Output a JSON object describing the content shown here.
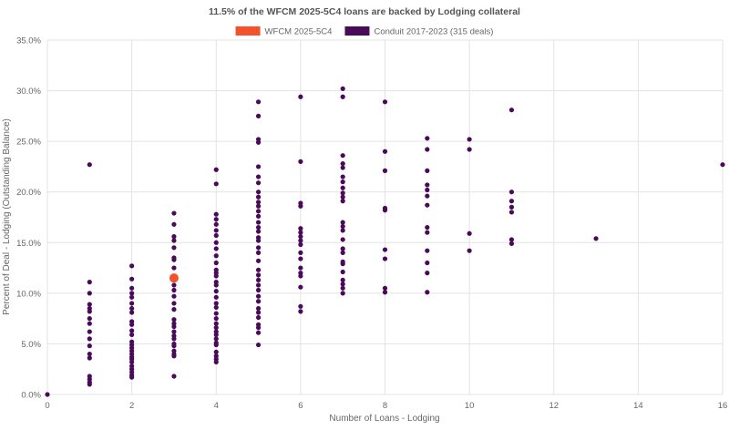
{
  "chart_data": {
    "type": "scatter",
    "title": "11.5% of the WFCM 2025-5C4 loans are backed by Lodging collateral",
    "xlabel": "Number of Loans - Lodging",
    "ylabel": "Percent of Deal - Lodging (Outstanding Balance)",
    "xlim": [
      0,
      16
    ],
    "ylim": [
      0,
      35
    ],
    "x_ticks": [
      {
        "value": 0,
        "label": "0"
      },
      {
        "value": 2,
        "label": "2"
      },
      {
        "value": 4,
        "label": "4"
      },
      {
        "value": 6,
        "label": "6"
      },
      {
        "value": 8,
        "label": "8"
      },
      {
        "value": 10,
        "label": "10"
      },
      {
        "value": 12,
        "label": "12"
      },
      {
        "value": 14,
        "label": "14"
      },
      {
        "value": 16,
        "label": "16"
      }
    ],
    "y_ticks": [
      {
        "value": 0,
        "label": "0.0%"
      },
      {
        "value": 5,
        "label": "5.0%"
      },
      {
        "value": 10,
        "label": "10.0%"
      },
      {
        "value": 15,
        "label": "15.0%"
      },
      {
        "value": 20,
        "label": "20.0%"
      },
      {
        "value": 25,
        "label": "25.0%"
      },
      {
        "value": 30,
        "label": "30.0%"
      },
      {
        "value": 35,
        "label": "35.0%"
      }
    ],
    "grid": true,
    "legend_position": "top-center",
    "series": [
      {
        "name": "WFCM 2025-5C4",
        "color": "#f4512c",
        "marker": "large-circle",
        "points": [
          [
            3,
            11.5
          ]
        ]
      },
      {
        "name": "Conduit 2017-2023 (315 deals)",
        "color": "#4a0a5a",
        "marker": "circle",
        "points": [
          [
            0,
            0.0
          ],
          [
            1,
            22.7
          ],
          [
            1,
            11.1
          ],
          [
            1,
            10.0
          ],
          [
            1,
            8.9
          ],
          [
            1,
            8.5
          ],
          [
            1,
            8.2
          ],
          [
            1,
            7.5
          ],
          [
            1,
            7.0
          ],
          [
            1,
            6.2
          ],
          [
            1,
            5.5
          ],
          [
            1,
            4.8
          ],
          [
            1,
            4.0
          ],
          [
            1,
            3.6
          ],
          [
            1,
            1.8
          ],
          [
            1,
            1.5
          ],
          [
            1,
            1.2
          ],
          [
            1,
            1.0
          ],
          [
            2,
            12.7
          ],
          [
            2,
            11.4
          ],
          [
            2,
            10.5
          ],
          [
            2,
            10.0
          ],
          [
            2,
            9.6
          ],
          [
            2,
            9.0
          ],
          [
            2,
            8.5
          ],
          [
            2,
            8.1
          ],
          [
            2,
            7.2
          ],
          [
            2,
            6.9
          ],
          [
            2,
            6.3
          ],
          [
            2,
            5.9
          ],
          [
            2,
            5.2
          ],
          [
            2,
            4.9
          ],
          [
            2,
            4.6
          ],
          [
            2,
            4.3
          ],
          [
            2,
            4.0
          ],
          [
            2,
            3.7
          ],
          [
            2,
            3.5
          ],
          [
            2,
            3.2
          ],
          [
            2,
            2.8
          ],
          [
            2,
            2.5
          ],
          [
            2,
            2.2
          ],
          [
            2,
            1.9
          ],
          [
            2,
            1.7
          ],
          [
            3,
            17.9
          ],
          [
            3,
            16.8
          ],
          [
            3,
            15.6
          ],
          [
            3,
            15.2
          ],
          [
            3,
            14.5
          ],
          [
            3,
            13.5
          ],
          [
            3,
            13.3
          ],
          [
            3,
            12.5
          ],
          [
            3,
            11.5
          ],
          [
            3,
            10.8
          ],
          [
            3,
            10.3
          ],
          [
            3,
            9.7
          ],
          [
            3,
            9.0
          ],
          [
            3,
            8.4
          ],
          [
            3,
            7.4
          ],
          [
            3,
            7.0
          ],
          [
            3,
            6.7
          ],
          [
            3,
            6.2
          ],
          [
            3,
            5.8
          ],
          [
            3,
            5.5
          ],
          [
            3,
            5.0
          ],
          [
            3,
            4.8
          ],
          [
            3,
            4.3
          ],
          [
            3,
            4.0
          ],
          [
            3,
            3.8
          ],
          [
            3,
            1.8
          ],
          [
            4,
            22.2
          ],
          [
            4,
            20.8
          ],
          [
            4,
            17.8
          ],
          [
            4,
            17.3
          ],
          [
            4,
            16.8
          ],
          [
            4,
            16.2
          ],
          [
            4,
            15.7
          ],
          [
            4,
            15.0
          ],
          [
            4,
            14.4
          ],
          [
            4,
            13.7
          ],
          [
            4,
            13.0
          ],
          [
            4,
            12.3
          ],
          [
            4,
            12.0
          ],
          [
            4,
            11.7
          ],
          [
            4,
            11.1
          ],
          [
            4,
            10.8
          ],
          [
            4,
            10.2
          ],
          [
            4,
            9.6
          ],
          [
            4,
            9.0
          ],
          [
            4,
            8.6
          ],
          [
            4,
            8.0
          ],
          [
            4,
            7.5
          ],
          [
            4,
            7.0
          ],
          [
            4,
            6.6
          ],
          [
            4,
            6.2
          ],
          [
            4,
            5.9
          ],
          [
            4,
            5.5
          ],
          [
            4,
            5.1
          ],
          [
            4,
            4.9
          ],
          [
            4,
            4.2
          ],
          [
            4,
            3.8
          ],
          [
            4,
            3.5
          ],
          [
            4,
            3.2
          ],
          [
            5,
            28.9
          ],
          [
            5,
            27.5
          ],
          [
            5,
            25.2
          ],
          [
            5,
            24.9
          ],
          [
            5,
            22.5
          ],
          [
            5,
            21.5
          ],
          [
            5,
            20.9
          ],
          [
            5,
            20.0
          ],
          [
            5,
            19.5
          ],
          [
            5,
            19.0
          ],
          [
            5,
            18.6
          ],
          [
            5,
            18.1
          ],
          [
            5,
            17.6
          ],
          [
            5,
            17.0
          ],
          [
            5,
            16.5
          ],
          [
            5,
            16.1
          ],
          [
            5,
            15.5
          ],
          [
            5,
            15.2
          ],
          [
            5,
            14.5
          ],
          [
            5,
            14.0
          ],
          [
            5,
            13.2
          ],
          [
            5,
            12.3
          ],
          [
            5,
            11.8
          ],
          [
            5,
            11.3
          ],
          [
            5,
            10.8
          ],
          [
            5,
            10.3
          ],
          [
            5,
            9.7
          ],
          [
            5,
            9.2
          ],
          [
            5,
            8.5
          ],
          [
            5,
            8.1
          ],
          [
            5,
            7.6
          ],
          [
            5,
            6.9
          ],
          [
            5,
            6.6
          ],
          [
            5,
            6.1
          ],
          [
            5,
            4.9
          ],
          [
            6,
            29.4
          ],
          [
            6,
            23.0
          ],
          [
            6,
            18.9
          ],
          [
            6,
            18.6
          ],
          [
            6,
            16.4
          ],
          [
            6,
            16.0
          ],
          [
            6,
            15.6
          ],
          [
            6,
            15.2
          ],
          [
            6,
            14.8
          ],
          [
            6,
            14.0
          ],
          [
            6,
            13.4
          ],
          [
            6,
            12.5
          ],
          [
            6,
            12.0
          ],
          [
            6,
            11.7
          ],
          [
            6,
            10.6
          ],
          [
            6,
            8.7
          ],
          [
            6,
            8.2
          ],
          [
            7,
            30.2
          ],
          [
            7,
            29.4
          ],
          [
            7,
            23.6
          ],
          [
            7,
            22.8
          ],
          [
            7,
            22.4
          ],
          [
            7,
            21.5
          ],
          [
            7,
            21.0
          ],
          [
            7,
            20.4
          ],
          [
            7,
            19.9
          ],
          [
            7,
            19.5
          ],
          [
            7,
            19.1
          ],
          [
            7,
            17.0
          ],
          [
            7,
            16.6
          ],
          [
            7,
            16.2
          ],
          [
            7,
            15.3
          ],
          [
            7,
            14.4
          ],
          [
            7,
            14.0
          ],
          [
            7,
            13.1
          ],
          [
            7,
            12.9
          ],
          [
            7,
            12.1
          ],
          [
            7,
            11.3
          ],
          [
            7,
            10.9
          ],
          [
            7,
            10.5
          ],
          [
            7,
            10.0
          ],
          [
            8,
            28.9
          ],
          [
            8,
            24.0
          ],
          [
            8,
            22.1
          ],
          [
            8,
            18.4
          ],
          [
            8,
            18.2
          ],
          [
            8,
            14.3
          ],
          [
            8,
            13.4
          ],
          [
            8,
            10.5
          ],
          [
            8,
            10.1
          ],
          [
            9,
            25.3
          ],
          [
            9,
            24.2
          ],
          [
            9,
            22.1
          ],
          [
            9,
            20.7
          ],
          [
            9,
            20.2
          ],
          [
            9,
            19.6
          ],
          [
            9,
            18.7
          ],
          [
            9,
            16.5
          ],
          [
            9,
            16.0
          ],
          [
            9,
            14.2
          ],
          [
            9,
            13.0
          ],
          [
            9,
            12.0
          ],
          [
            9,
            10.1
          ],
          [
            10,
            25.2
          ],
          [
            10,
            24.2
          ],
          [
            10,
            15.9
          ],
          [
            10,
            14.2
          ],
          [
            11,
            28.1
          ],
          [
            11,
            20.0
          ],
          [
            11,
            19.1
          ],
          [
            11,
            18.5
          ],
          [
            11,
            18.0
          ],
          [
            11,
            15.3
          ],
          [
            11,
            14.9
          ],
          [
            13,
            15.4
          ],
          [
            16,
            22.7
          ]
        ]
      }
    ]
  }
}
